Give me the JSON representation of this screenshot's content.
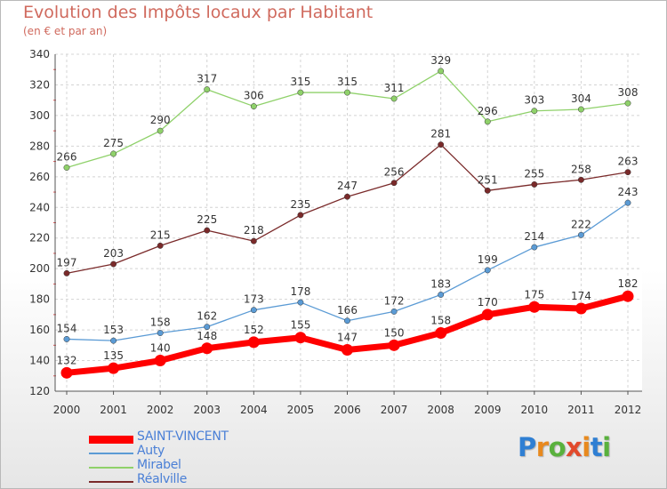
{
  "title": "Evolution des Impôts locaux par Habitant",
  "subtitle": "(en € et par an)",
  "logo": {
    "letters": [
      {
        "ch": "P",
        "color": "#2f7fd3"
      },
      {
        "ch": "r",
        "color": "#e8891e"
      },
      {
        "ch": "o",
        "color": "#59b13d"
      },
      {
        "ch": "x",
        "color": "#e24a2c"
      },
      {
        "ch": "i",
        "color": "#e8891e"
      },
      {
        "ch": "t",
        "color": "#2f7fd3"
      },
      {
        "ch": "i",
        "color": "#59b13d"
      }
    ]
  },
  "chart_data": {
    "type": "line",
    "x": [
      "2000",
      "2001",
      "2002",
      "2003",
      "2004",
      "2005",
      "2006",
      "2007",
      "2008",
      "2009",
      "2010",
      "2011",
      "2012"
    ],
    "ylim": [
      120,
      340
    ],
    "yticks": [
      120,
      140,
      160,
      180,
      200,
      220,
      240,
      260,
      280,
      300,
      320,
      340
    ],
    "grid": true,
    "legend_position": "bottom-left",
    "series": [
      {
        "name": "Mirabel",
        "color": "#8fd16a",
        "emphasis": false,
        "values": [
          266,
          275,
          290,
          317,
          306,
          315,
          315,
          311,
          329,
          296,
          303,
          304,
          308
        ]
      },
      {
        "name": "Réalville",
        "color": "#7a2a2a",
        "emphasis": false,
        "values": [
          197,
          203,
          215,
          225,
          218,
          235,
          247,
          256,
          281,
          251,
          255,
          258,
          263
        ]
      },
      {
        "name": "Auty",
        "color": "#5b9bd5",
        "emphasis": false,
        "values": [
          154,
          153,
          158,
          162,
          173,
          178,
          166,
          172,
          183,
          199,
          214,
          222,
          243
        ]
      },
      {
        "name": "SAINT-VINCENT",
        "color": "#ff0000",
        "emphasis": true,
        "values": [
          132,
          135,
          140,
          148,
          152,
          155,
          147,
          150,
          158,
          170,
          175,
          174,
          182
        ]
      }
    ],
    "legend_order": [
      "SAINT-VINCENT",
      "Auty",
      "Mirabel",
      "Réalville"
    ]
  }
}
